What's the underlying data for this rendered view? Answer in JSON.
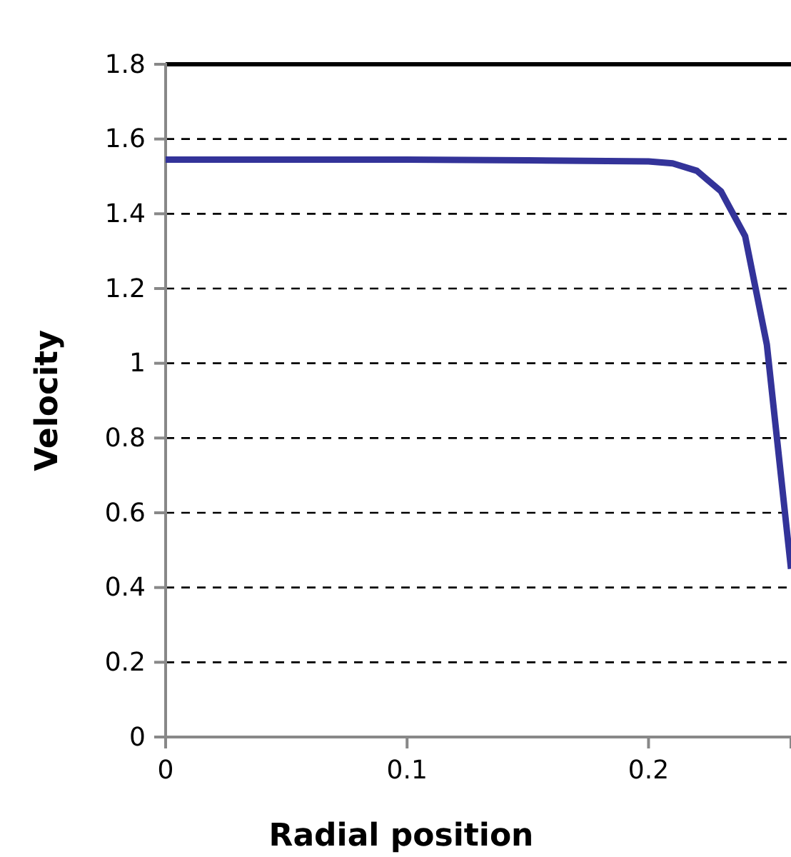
{
  "chart_data": {
    "type": "line",
    "xlabel": "Radial position",
    "ylabel": "Velocity",
    "x": [
      0,
      0.05,
      0.1,
      0.15,
      0.2,
      0.21,
      0.22,
      0.23,
      0.24,
      0.249,
      0.259
    ],
    "series": [
      {
        "color": "#333399",
        "values": [
          1.545,
          1.545,
          1.545,
          1.543,
          1.54,
          1.535,
          1.515,
          1.46,
          1.34,
          1.05,
          0.45
        ]
      }
    ],
    "xlim": [
      0,
      0.259
    ],
    "xticks": [
      0,
      0.1,
      0.2
    ],
    "ylim": [
      0,
      1.8
    ],
    "yticks": [
      0,
      0.2,
      0.4,
      0.6,
      0.8,
      1,
      1.2,
      1.4,
      1.6,
      1.8
    ],
    "grid": "y",
    "marker": "none",
    "line_style": "solid"
  }
}
